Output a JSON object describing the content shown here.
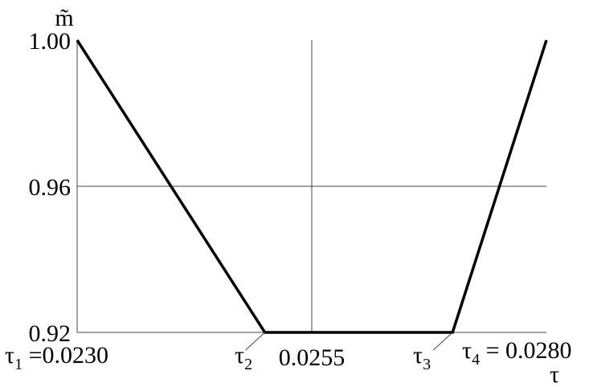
{
  "chart_data": {
    "type": "line",
    "title": "",
    "xlabel": "τ",
    "ylabel": "m̃",
    "xlim": [
      0.023,
      0.028
    ],
    "ylim": [
      0.92,
      1.0
    ],
    "grid": true,
    "y_ticks": [
      {
        "value": 1.0,
        "label": "1.00"
      },
      {
        "value": 0.96,
        "label": "0.96"
      },
      {
        "value": 0.92,
        "label": "0.92"
      }
    ],
    "x_ticks": [
      {
        "value": 0.0255,
        "label": "0.0255"
      }
    ],
    "annotations": [
      {
        "symbol": "τ",
        "sub": "1",
        "text": " =0.0230",
        "value": 0.023
      },
      {
        "symbol": "τ",
        "sub": "2",
        "text": "",
        "value": 0.025
      },
      {
        "symbol": "τ",
        "sub": "3",
        "text": "",
        "value": 0.027
      },
      {
        "symbol": "τ",
        "sub": "4",
        "text": " = 0.0280",
        "value": 0.028
      }
    ],
    "series": [
      {
        "x": [
          0.023,
          0.025,
          0.027,
          0.028
        ],
        "y": [
          1.0,
          0.92,
          0.92,
          1.0
        ],
        "color": "#000000"
      }
    ]
  }
}
